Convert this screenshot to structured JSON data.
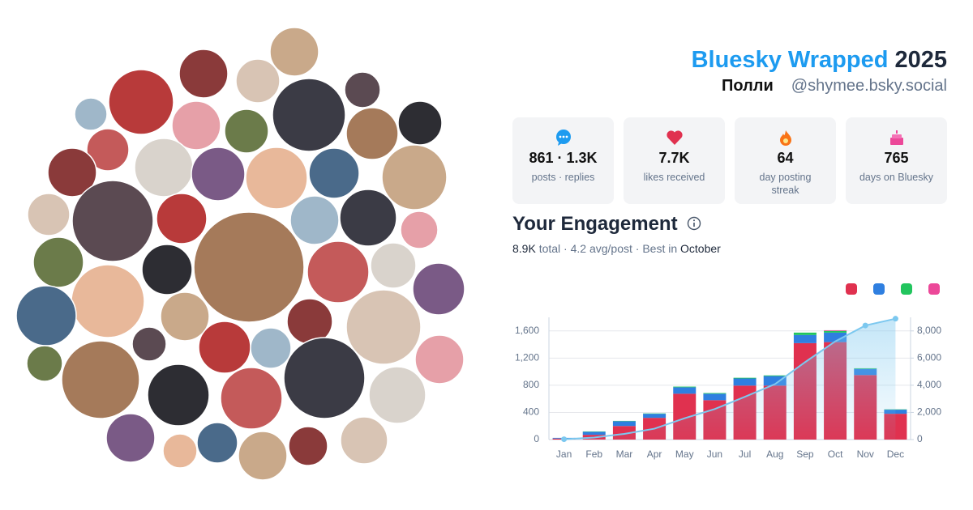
{
  "header": {
    "title": "Bluesky Wrapped",
    "year": "2025",
    "display_name": "Полли",
    "handle": "@shymee.bsky.social"
  },
  "stats": [
    {
      "value": "861 · 1.3K",
      "label": "posts · replies"
    },
    {
      "value": "7.7K",
      "label": "likes received"
    },
    {
      "value": "64",
      "label": "day posting streak"
    },
    {
      "value": "765",
      "label": "days on Bluesky"
    }
  ],
  "engagement": {
    "heading": "Your Engagement",
    "total": "8.9K",
    "summary": "total · 4.2 avg/post · Best in",
    "best_month": "October"
  },
  "chart_data": {
    "type": "bar",
    "categories": [
      "Jan",
      "Feb",
      "Mar",
      "Apr",
      "May",
      "Jun",
      "Jul",
      "Aug",
      "Sep",
      "Oct",
      "Nov",
      "Dec"
    ],
    "series": [
      {
        "color": "#e0314f",
        "values": [
          15,
          70,
          200,
          320,
          675,
          580,
          795,
          795,
          1420,
          1435,
          950,
          380
        ]
      },
      {
        "color": "#2f7fe0",
        "values": [
          10,
          45,
          70,
          60,
          95,
          95,
          105,
          140,
          120,
          140,
          90,
          60
        ]
      },
      {
        "color": "#22c55e",
        "values": [
          0,
          5,
          5,
          5,
          10,
          10,
          10,
          10,
          35,
          25,
          10,
          5
        ]
      },
      {
        "color": "#ec4899",
        "values": [
          0,
          0,
          0,
          0,
          0,
          0,
          0,
          0,
          0,
          10,
          0,
          0
        ]
      },
      {
        "color": "#7cc8ef",
        "axis": "y2",
        "values": [
          25,
          150,
          420,
          800,
          1570,
          2245,
          3145,
          4080,
          5700,
          7230,
          8400,
          8900
        ]
      }
    ],
    "ylim": [
      0,
      1800
    ],
    "yticks": [
      0,
      400,
      800,
      {
        "value": 1200,
        "label": "1,200"
      },
      {
        "value": 1600,
        "label": "1,600"
      }
    ],
    "y2lim": [
      0,
      9000
    ],
    "y2ticks": [
      0,
      {
        "value": 2000,
        "label": "2,000"
      },
      {
        "value": 4000,
        "label": "4,000"
      },
      {
        "value": 6000,
        "label": "6,000"
      },
      {
        "value": 8000,
        "label": "8,000"
      }
    ],
    "grid": true
  }
}
